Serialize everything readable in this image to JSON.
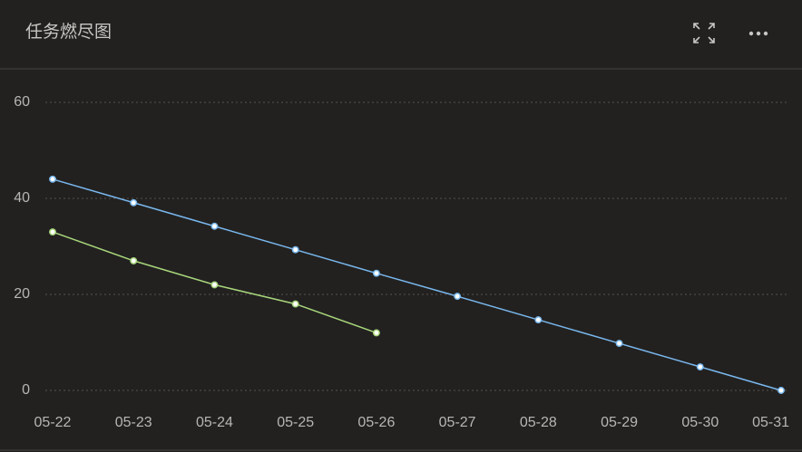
{
  "chart_data": {
    "type": "line",
    "title": "任务燃尽图",
    "categories": [
      "05-22",
      "05-23",
      "05-24",
      "05-25",
      "05-26",
      "05-27",
      "05-28",
      "05-29",
      "05-30",
      "05-31"
    ],
    "series": [
      {
        "color": "#7ab8ee",
        "values": [
          44,
          39.1,
          34.2,
          29.3,
          24.4,
          19.6,
          14.7,
          9.8,
          4.9,
          0
        ]
      },
      {
        "color": "#a8d67a",
        "values": [
          33,
          27,
          22,
          18,
          12,
          null,
          null,
          null,
          null,
          null
        ]
      }
    ],
    "ylim": [
      0,
      60
    ],
    "yticks": [
      0,
      20,
      40,
      60
    ],
    "grid": true
  }
}
